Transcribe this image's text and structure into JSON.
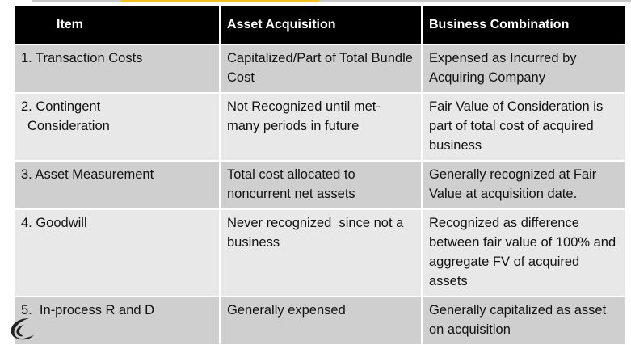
{
  "table": {
    "headers": [
      "Item",
      "Asset Acquisition",
      "Business Combination"
    ],
    "rows": [
      [
        "1. Transaction Costs",
        "Capitalized/Part of Total Bundle Cost",
        "Expensed as Incurred by Acquiring Company"
      ],
      [
        "2. Contingent Consideration",
        "Not Recognized until met- many periods in future",
        "Fair Value of Consideration is part of total cost of acquired business"
      ],
      [
        "3. Asset Measurement",
        "Total cost allocated to noncurrent net assets",
        "Generally recognized at Fair Value at acquisition date."
      ],
      [
        "4. Goodwill",
        "Never recognized  since not a business",
        "Recognized as difference between fair value of 100% and aggregate FV of acquired assets"
      ],
      [
        "5.  In-process R and D",
        "Generally expensed",
        "Generally capitalized as asset on acquisition"
      ]
    ]
  },
  "colors": {
    "header_bg": "#000000",
    "row_dark": "#cfcfcf",
    "row_light": "#e8e8e8",
    "accent": "#f2c21a"
  },
  "icons": {
    "logo": "swirl-logo-icon"
  }
}
